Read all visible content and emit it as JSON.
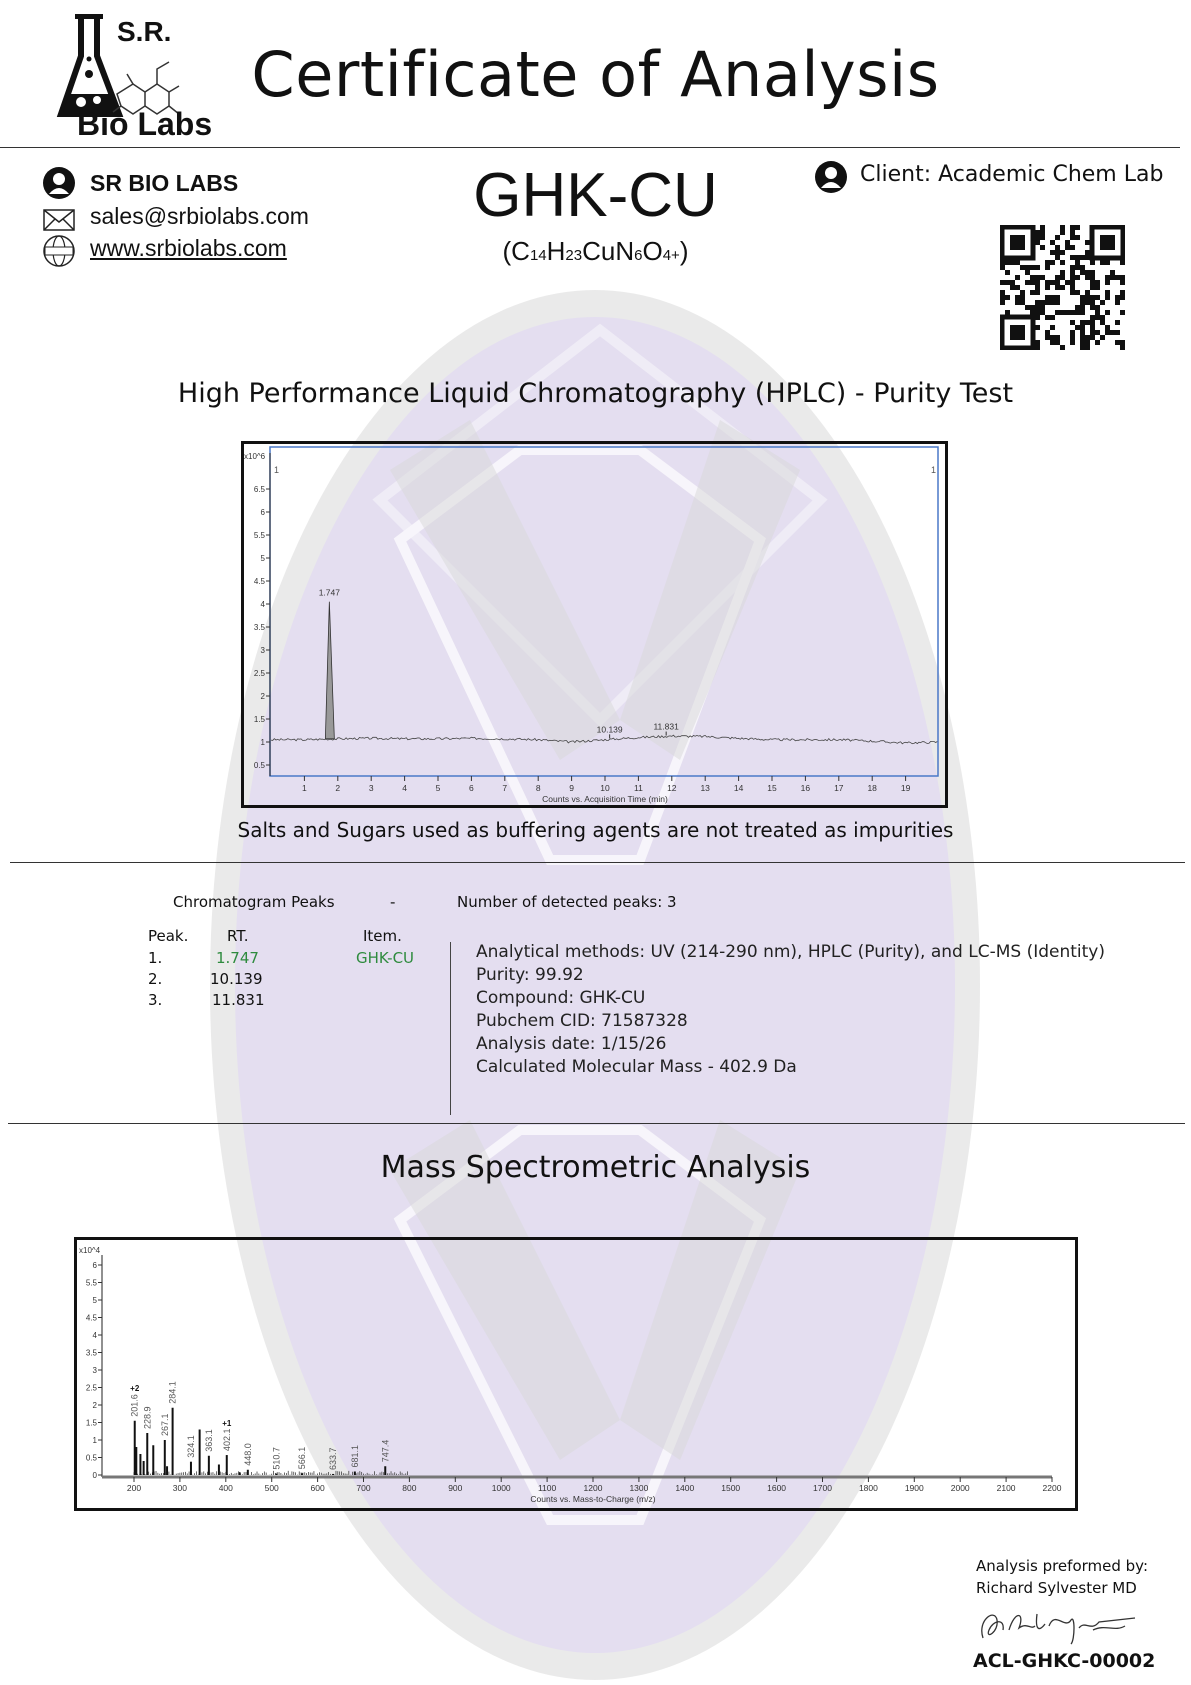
{
  "header": {
    "logo_text_top": "S.R.",
    "logo_text_bottom": "Bio Labs",
    "title": "Certificate of Analysis"
  },
  "contact": {
    "company": "SR BIO LABS",
    "email": "sales@srbiolabs.com",
    "website": "www.srbiolabs.com",
    "client": "Client: Academic Chem Lab"
  },
  "product": {
    "name": "GHK-CU",
    "formula_parts": [
      "(C",
      "14",
      "H",
      "23",
      "CuN",
      "6",
      "O",
      "4+",
      ")"
    ]
  },
  "hplc": {
    "heading": "High Performance Liquid Chromatography (HPLC) - Purity Test",
    "note": "Salts and Sugars used as buffering agents are not treated as impurities"
  },
  "peaks_table": {
    "title": "Chromatogram Peaks",
    "separator": "-",
    "count_label": "Number of detected peaks: 3",
    "headers": [
      "Peak.",
      "RT.",
      "Item."
    ],
    "rows": [
      {
        "peak": "1.",
        "rt": "1.747",
        "item": "GHK-CU"
      },
      {
        "peak": "2.",
        "rt": "10.139",
        "item": ""
      },
      {
        "peak": "3.",
        "rt": "11.831",
        "item": ""
      }
    ]
  },
  "analysis_info": [
    "Analytical methods: UV (214-290 nm), HPLC (Purity), and LC-MS (Identity)",
    "Purity: 99.92",
    "Compound: GHK-CU",
    "Pubchem CID: 71587328",
    "Analysis date: 1/15/26",
    "Calculated Molecular Mass - 402.9 Da"
  ],
  "ms": {
    "heading": "Mass Spectrometric Analysis"
  },
  "footer": {
    "performed_by_label": "Analysis preformed by:",
    "analyst": "Richard Sylvester MD",
    "certificate_id": "ACL-GHKC-00002"
  },
  "colors": {
    "accent_green": "#2e8b3e",
    "plot_border_blue": "#4a78c8",
    "watermark_lavender": "#e4def0"
  },
  "chart_data": [
    {
      "type": "line",
      "title": "",
      "xlabel": "Counts vs. Acquisition Time (min)",
      "ylabel": "",
      "y_multiplier": "x10^6",
      "xlim": [
        0,
        20
      ],
      "ylim": [
        0,
        7.4
      ],
      "x_ticks": [
        "1",
        "2",
        "3",
        "4",
        "5",
        "6",
        "7",
        "8",
        "9",
        "10",
        "11",
        "12",
        "13",
        "14",
        "15",
        "16",
        "17",
        "18",
        "19"
      ],
      "y_ticks": [
        "0.5",
        "1",
        "1.5",
        "2",
        "2.5",
        "3",
        "3.5",
        "4",
        "4.5",
        "5",
        "5.5",
        "6",
        "6.5"
      ],
      "corner_markers": [
        "1",
        "1"
      ],
      "baseline": {
        "x": [
          0,
          1,
          2,
          3,
          4,
          5,
          6,
          7,
          8,
          9,
          10,
          11,
          12,
          13,
          14,
          15,
          16,
          17,
          18,
          19,
          20
        ],
        "y": [
          1.05,
          1.05,
          1.07,
          1.08,
          1.07,
          1.07,
          1.08,
          1.07,
          1.05,
          1.0,
          1.05,
          1.1,
          1.13,
          1.12,
          1.08,
          1.05,
          1.05,
          1.05,
          1.02,
          0.98,
          1.0
        ]
      },
      "peaks": [
        {
          "label": "1.747",
          "x": 1.747,
          "y": 4.05
        },
        {
          "label": "10.139",
          "x": 10.139,
          "y": 1.08
        },
        {
          "label": "11.831",
          "x": 11.831,
          "y": 1.14
        }
      ],
      "grid": false
    },
    {
      "type": "bar",
      "title": "",
      "xlabel": "Counts vs. Mass-to-Charge (m/z)",
      "ylabel": "",
      "y_multiplier": "x10^4",
      "xlim": [
        150,
        2200
      ],
      "ylim": [
        0,
        6.2
      ],
      "x_ticks": [
        "200",
        "300",
        "400",
        "500",
        "600",
        "700",
        "800",
        "900",
        "1000",
        "1100",
        "1200",
        "1300",
        "1400",
        "1500",
        "1600",
        "1700",
        "1800",
        "1900",
        "2000",
        "2100",
        "2200"
      ],
      "y_ticks": [
        "0",
        "0.5",
        "1",
        "1.5",
        "2",
        "2.5",
        "3",
        "3.5",
        "4",
        "4.5",
        "5",
        "5.5",
        "6"
      ],
      "peaks": [
        {
          "mz": 201.6,
          "y": 1.55,
          "label": "201.6"
        },
        {
          "mz": 205,
          "y": 0.8,
          "label": ""
        },
        {
          "mz": 214,
          "y": 0.6,
          "label": ""
        },
        {
          "mz": 221,
          "y": 0.4,
          "label": ""
        },
        {
          "mz": 228.9,
          "y": 1.2,
          "label": "228.9"
        },
        {
          "mz": 242,
          "y": 0.85,
          "label": ""
        },
        {
          "mz": 267.1,
          "y": 1.0,
          "label": "267.1"
        },
        {
          "mz": 272,
          "y": 0.25,
          "label": ""
        },
        {
          "mz": 284.1,
          "y": 1.92,
          "label": "284.1"
        },
        {
          "mz": 324.1,
          "y": 0.38,
          "label": "324.1"
        },
        {
          "mz": 343,
          "y": 1.3,
          "label": ""
        },
        {
          "mz": 363.1,
          "y": 0.55,
          "label": "363.1"
        },
        {
          "mz": 385,
          "y": 0.3,
          "label": ""
        },
        {
          "mz": 402.1,
          "y": 0.57,
          "label": "402.1"
        },
        {
          "mz": 430,
          "y": 0.08,
          "label": ""
        },
        {
          "mz": 448.0,
          "y": 0.15,
          "label": "448.0"
        },
        {
          "mz": 510.7,
          "y": 0.04,
          "label": "510.7"
        },
        {
          "mz": 566.1,
          "y": 0.05,
          "label": "566.1"
        },
        {
          "mz": 633.7,
          "y": 0.03,
          "label": "633.7"
        },
        {
          "mz": 681.1,
          "y": 0.1,
          "label": "681.1"
        },
        {
          "mz": 747.4,
          "y": 0.25,
          "label": "747.4"
        }
      ],
      "annotations": [
        {
          "text": "+2",
          "mz": 201.6,
          "y": 2.4
        },
        {
          "text": "+1",
          "mz": 402.1,
          "y": 1.4
        }
      ],
      "grid": false
    }
  ]
}
